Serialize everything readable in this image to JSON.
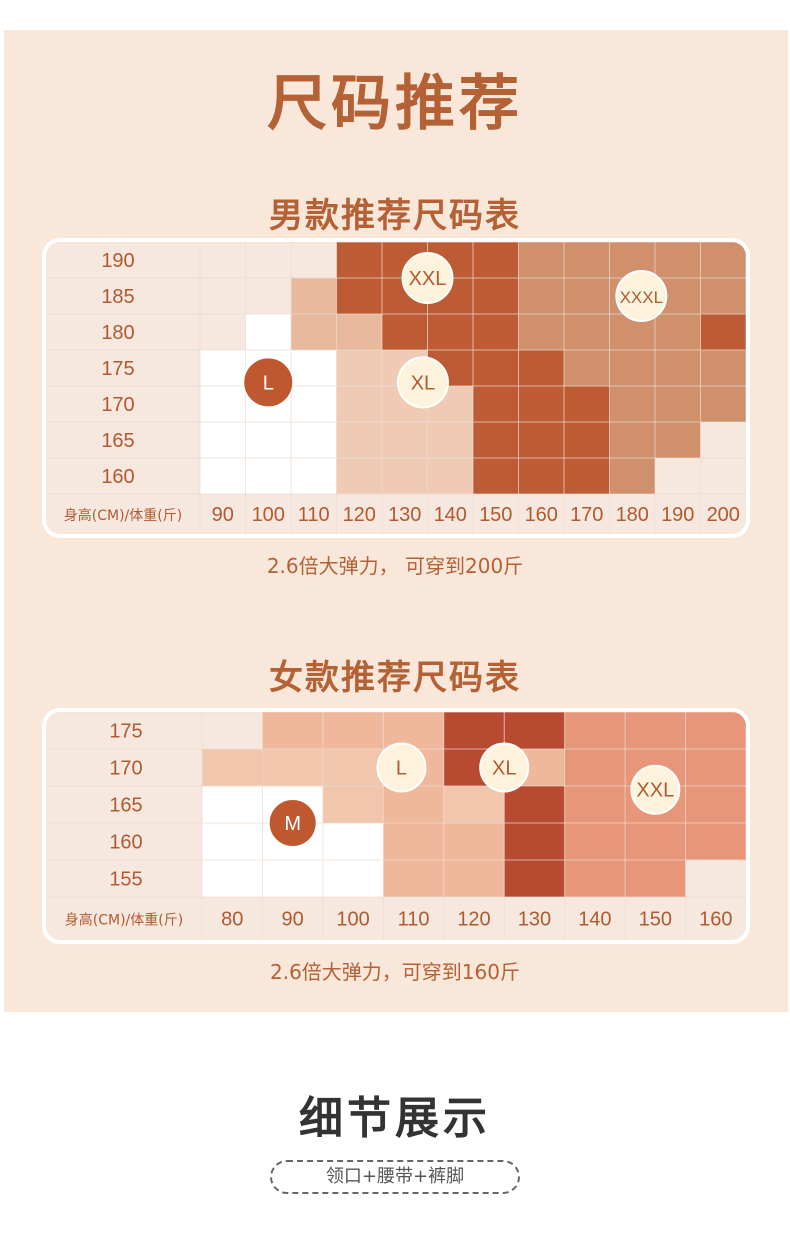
{
  "page": {
    "title": "尺码推荐",
    "details_title": "细节展示",
    "details_pill": "领口+腰带+裤脚"
  },
  "men": {
    "title": "男款推荐尺码表",
    "axis_label": "身高(CM)/体重(斤)",
    "note": "2.6倍大弹力，  可穿到200斤",
    "heights": [
      "190",
      "185",
      "180",
      "175",
      "170",
      "165",
      "160"
    ],
    "weights": [
      "90",
      "100",
      "110",
      "120",
      "130",
      "140",
      "150",
      "160",
      "170",
      "180",
      "190",
      "200"
    ],
    "sizes": [
      {
        "label": "L",
        "color": "#c0582f",
        "text": "#ffffff",
        "col": 1.5,
        "row": 3.9
      },
      {
        "label": "XL",
        "color": "#fdf3dc",
        "text": "#b05a30",
        "col": 4.9,
        "row": 3.9
      },
      {
        "label": "XXL",
        "color": "#fdf3dc",
        "text": "#b05a30",
        "col": 5.0,
        "row": 1.0
      },
      {
        "label": "XXXL",
        "color": "#fdf3dc",
        "text": "#b05a30",
        "col": 9.7,
        "row": 1.5
      }
    ],
    "colors": {
      "w": "#ffffff",
      "p": "#f6e8df",
      "a": "#efcbb6",
      "b": "#e9b99d",
      "r": "#bd5b34",
      "d": "#c2643c",
      "o": "#d1906c"
    },
    "grid": [
      "ppprrrrooooo",
      "ppbrrrrooooo",
      "pwbbrrroooor",
      "wwwaarrroooo",
      "wwwaaarrrooo",
      "wwwaaarrroop",
      "wwwaaarrropp"
    ]
  },
  "women": {
    "title": "女款推荐尺码表",
    "axis_label": "身高(CM)/体重(斤)",
    "note": "2.6倍大弹力，可穿到160斤",
    "heights": [
      "175",
      "170",
      "165",
      "160",
      "155"
    ],
    "weights": [
      "80",
      "90",
      "100",
      "110",
      "120",
      "130",
      "140",
      "150",
      "160"
    ],
    "sizes": [
      {
        "label": "M",
        "color": "#c0582f",
        "text": "#ffffff",
        "col": 1.5,
        "row": 3.0
      },
      {
        "label": "L",
        "color": "#fdf3dc",
        "text": "#b05a30",
        "col": 3.3,
        "row": 1.5
      },
      {
        "label": "XL",
        "color": "#fdf3dc",
        "text": "#b05a30",
        "col": 5.0,
        "row": 1.5
      },
      {
        "label": "XXL",
        "color": "#fdf3dc",
        "text": "#b05a30",
        "col": 7.5,
        "row": 2.1
      }
    ],
    "colors": {
      "w": "#ffffff",
      "p": "#f6e8df",
      "a": "#f2c5ad",
      "b": "#f0b89a",
      "r": "#b84a32",
      "o": "#e8967a"
    },
    "grid": [
      "pbbbrrooo",
      "aaabrbooo",
      "wwabarooo",
      "wwwbbrooo",
      "wwwbbroop"
    ]
  }
}
